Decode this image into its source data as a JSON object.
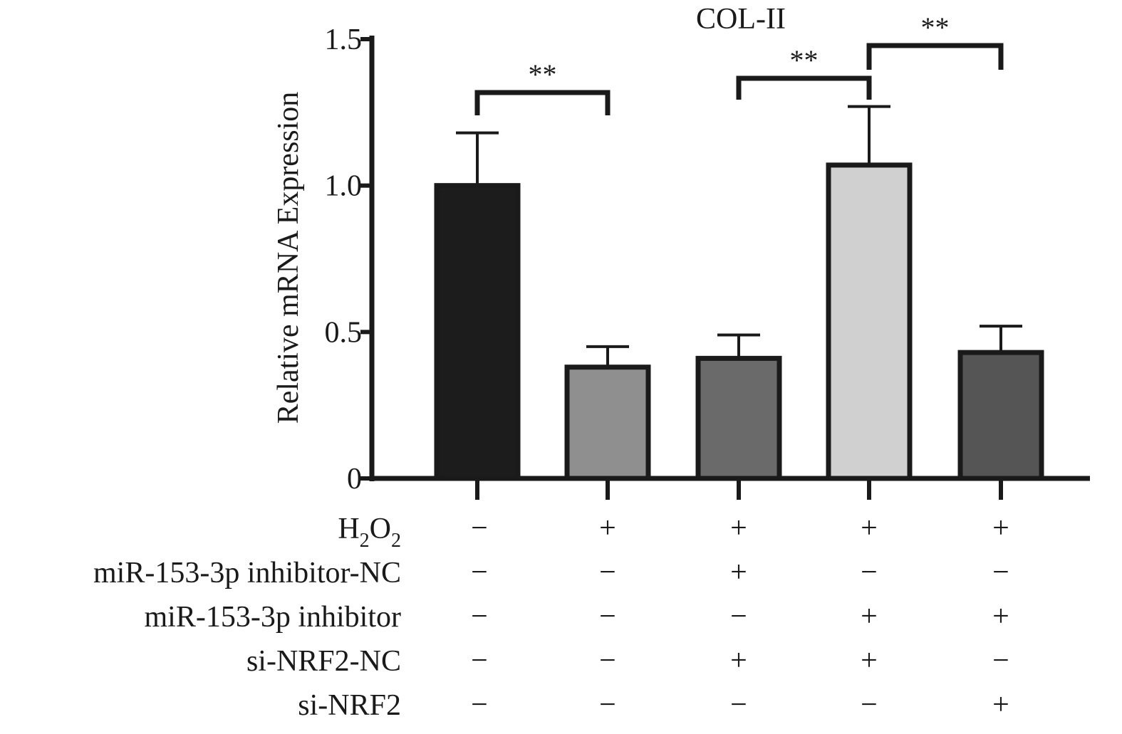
{
  "chart_data": {
    "type": "bar",
    "title": "COL-II",
    "ylabel": "Relative mRNA Expression",
    "xlabel": "",
    "ylim": [
      0,
      1.5
    ],
    "yticks": [
      {
        "value": 0,
        "label": "0"
      },
      {
        "value": 0.5,
        "label": "0.5"
      },
      {
        "value": 1.0,
        "label": "1.0"
      },
      {
        "value": 1.5,
        "label": "1.5"
      }
    ],
    "bars": [
      {
        "value": 1.0,
        "error": 0.18,
        "color": "#1c1c1c"
      },
      {
        "value": 0.38,
        "error": 0.07,
        "color": "#8f8f8f"
      },
      {
        "value": 0.41,
        "error": 0.08,
        "color": "#6a6a6a"
      },
      {
        "value": 1.07,
        "error": 0.2,
        "color": "#d0d0d0"
      },
      {
        "value": 0.43,
        "error": 0.09,
        "color": "#555555"
      }
    ],
    "treatments": [
      {
        "label": "H",
        "sub1": "2",
        "mid": "O",
        "sub2": "2",
        "signs": [
          "−",
          "+",
          "+",
          "+",
          "+"
        ]
      },
      {
        "label": "miR-153-3p inhibitor-NC",
        "signs": [
          "−",
          "−",
          "+",
          "−",
          "−"
        ]
      },
      {
        "label": "miR-153-3p inhibitor",
        "signs": [
          "−",
          "−",
          "−",
          "+",
          "+"
        ]
      },
      {
        "label": "si-NRF2-NC",
        "signs": [
          "−",
          "−",
          "+",
          "+",
          "−"
        ]
      },
      {
        "label": "si-NRF2",
        "signs": [
          "−",
          "−",
          "−",
          "−",
          "+"
        ]
      }
    ],
    "significance": [
      {
        "from": 0,
        "to": 1,
        "label": "**"
      },
      {
        "from": 2,
        "to": 3,
        "label": "**"
      },
      {
        "from": 3,
        "to": 4,
        "label": "**"
      }
    ]
  }
}
